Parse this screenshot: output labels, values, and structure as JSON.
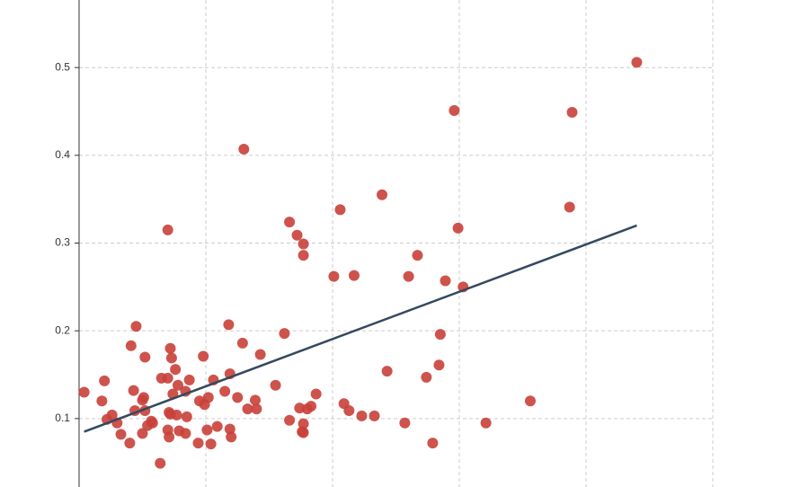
{
  "chart_data": {
    "type": "scatter",
    "x": [
      0.04,
      0.18,
      0.2,
      0.22,
      0.26,
      0.3,
      0.33,
      0.4,
      0.41,
      0.43,
      0.44,
      0.45,
      0.5,
      0.51,
      0.5,
      0.52,
      0.52,
      0.54,
      0.57,
      0.58,
      0.64,
      0.65,
      0.7,
      0.7,
      0.7,
      0.71,
      0.71,
      0.72,
      0.72,
      0.73,
      0.74,
      0.76,
      0.77,
      0.78,
      0.79,
      0.84,
      0.84,
      0.85,
      0.87,
      0.94,
      0.95,
      0.98,
      0.99,
      1.01,
      1.02,
      1.04,
      1.06,
      1.09,
      1.15,
      1.18,
      1.19,
      1.19,
      1.2,
      1.25,
      1.29,
      1.3,
      1.33,
      1.39,
      1.4,
      1.43,
      1.55,
      1.62,
      1.66,
      1.66,
      1.72,
      1.74,
      1.76,
      1.77,
      1.77,
      1.77,
      1.77,
      1.8,
      1.83,
      1.87,
      2.01,
      2.06,
      2.09,
      2.13,
      2.17,
      2.23,
      2.33,
      2.39,
      2.43,
      2.57,
      2.6,
      2.67,
      2.74,
      2.79,
      2.84,
      2.85,
      2.89,
      2.96,
      2.99,
      3.03,
      3.21,
      3.56,
      3.87,
      3.89,
      4.4
    ],
    "values": [
      0.13,
      0.12,
      0.143,
      0.099,
      0.104,
      0.095,
      0.082,
      0.072,
      0.183,
      0.132,
      0.109,
      0.205,
      0.121,
      0.124,
      0.083,
      0.17,
      0.109,
      0.092,
      0.097,
      0.095,
      0.049,
      0.146,
      0.146,
      0.087,
      0.315,
      0.079,
      0.107,
      0.18,
      0.105,
      0.169,
      0.128,
      0.156,
      0.104,
      0.138,
      0.086,
      0.083,
      0.131,
      0.102,
      0.144,
      0.072,
      0.12,
      0.171,
      0.116,
      0.087,
      0.124,
      0.071,
      0.144,
      0.091,
      0.131,
      0.207,
      0.151,
      0.088,
      0.079,
      0.124,
      0.186,
      0.407,
      0.111,
      0.121,
      0.111,
      0.173,
      0.138,
      0.197,
      0.098,
      0.324,
      0.309,
      0.112,
      0.085,
      0.299,
      0.286,
      0.084,
      0.094,
      0.111,
      0.114,
      0.128,
      0.262,
      0.338,
      0.117,
      0.109,
      0.263,
      0.103,
      0.103,
      0.355,
      0.154,
      0.095,
      0.262,
      0.286,
      0.147,
      0.072,
      0.161,
      0.196,
      0.257,
      0.451,
      0.317,
      0.25,
      0.095,
      0.12,
      0.341,
      0.449,
      0.506
    ],
    "color": "#c9403a",
    "trendline": {
      "x": [
        0.04,
        4.4
      ],
      "y": [
        0.085,
        0.32
      ],
      "color": "#34495e"
    },
    "xlim": [
      -0.624,
      5.617
    ],
    "ylim": [
      0.022,
      0.577
    ],
    "xgrid": [
      1,
      2,
      3,
      4,
      5
    ],
    "yticks": [
      0.1,
      0.2,
      0.3,
      0.4,
      0.5
    ],
    "grid": true
  }
}
